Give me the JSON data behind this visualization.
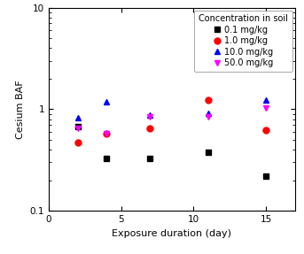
{
  "series": [
    {
      "label": "0.1 mg/kg",
      "color": "black",
      "marker": "s",
      "x": [
        2,
        4,
        7,
        11,
        15
      ],
      "y": [
        0.68,
        0.33,
        0.33,
        0.38,
        0.22
      ]
    },
    {
      "label": "1.0 mg/kg",
      "color": "red",
      "marker": "o",
      "x": [
        2,
        4,
        7,
        11,
        15
      ],
      "y": [
        0.47,
        0.58,
        0.65,
        1.22,
        0.62
      ]
    },
    {
      "label": "10.0 mg/kg",
      "color": "blue",
      "marker": "^",
      "x": [
        2,
        4,
        7,
        11,
        15
      ],
      "y": [
        0.82,
        1.18,
        0.88,
        0.92,
        1.22
      ]
    },
    {
      "label": "50.0 mg/kg",
      "color": "magenta",
      "marker": "v",
      "x": [
        2,
        4,
        7,
        11,
        15
      ],
      "y": [
        0.65,
        0.58,
        0.85,
        0.85,
        1.02
      ]
    }
  ],
  "xlabel": "Exposure duration (day)",
  "ylabel": "Cesium BAF",
  "xlim": [
    0,
    17
  ],
  "ylim": [
    0.1,
    10
  ],
  "xticks": [
    0,
    5,
    10,
    15
  ],
  "yticks": [
    0.1,
    1.0,
    10.0
  ],
  "ytick_labels": [
    "0.1",
    "1",
    "10"
  ],
  "legend_title": "Concentration in soil",
  "legend_fontsize": 7,
  "marker_size": 5,
  "axis_fontsize": 8,
  "tick_fontsize": 7.5
}
